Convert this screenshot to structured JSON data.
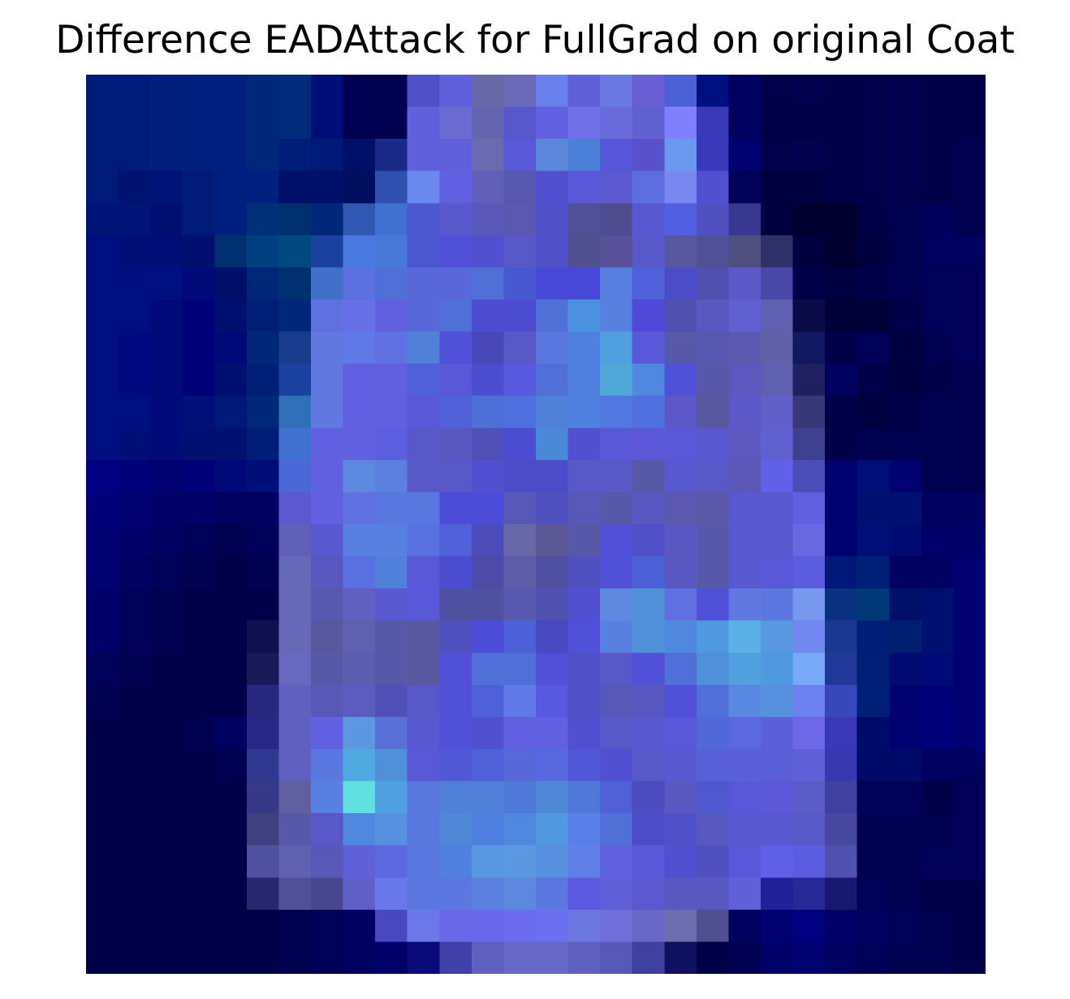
{
  "chart_data": {
    "type": "heatmap",
    "title": "Difference EADAttack for FullGrad on original Coat",
    "axes_visible": false,
    "grid": false,
    "rows": 28,
    "cols": 28,
    "cell_colors": [
      [
        "#001a7a",
        "#001a7a",
        "#001e7a",
        "#002080",
        "#002080",
        "#00287a",
        "#002a7a",
        "#000f78",
        "#000050",
        "#000050",
        "#5050c8",
        "#6060dc",
        "#6868a8",
        "#6a6ab8",
        "#6a80ec",
        "#6060d8",
        "#6a78e4",
        "#6a5ed4",
        "#4a60d4",
        "#000f80",
        "#000060",
        "#00004a",
        "#00004c",
        "#000048",
        "#00004a",
        "#00004c",
        "#000048",
        "#000048"
      ],
      [
        "#001a7a",
        "#001a7a",
        "#001e7a",
        "#002080",
        "#002080",
        "#00287a",
        "#002a7a",
        "#000f78",
        "#000050",
        "#000050",
        "#6060dc",
        "#6a6ad0",
        "#6464b0",
        "#5858cc",
        "#6060e0",
        "#7070e8",
        "#6a6adc",
        "#6060d0",
        "#8080ff",
        "#3838b8",
        "#000060",
        "#000048",
        "#000048",
        "#000048",
        "#00004a",
        "#00004c",
        "#000048",
        "#000048"
      ],
      [
        "#001a7a",
        "#001a7a",
        "#001e7a",
        "#002080",
        "#002080",
        "#00287a",
        "#001e78",
        "#001878",
        "#000f68",
        "#1a2888",
        "#6060dc",
        "#6060dc",
        "#6a6ab0",
        "#5858d8",
        "#5c88dc",
        "#4c80d8",
        "#5656d8",
        "#5a50cc",
        "#6a98ee",
        "#3838b8",
        "#000070",
        "#00004a",
        "#00004c",
        "#000048",
        "#00004a",
        "#00004c",
        "#000048",
        "#000050"
      ],
      [
        "#001a7a",
        "#001270",
        "#001478",
        "#001a78",
        "#002080",
        "#002080",
        "#001068",
        "#000f68",
        "#000f60",
        "#3050b0",
        "#6a88ee",
        "#6060e0",
        "#6060b8",
        "#5858b0",
        "#5050d0",
        "#5858d8",
        "#5c58d0",
        "#5c6ee0",
        "#7888f0",
        "#5050d0",
        "#000058",
        "#000040",
        "#000040",
        "#000048",
        "#00004a",
        "#00004c",
        "#000048",
        "#000050"
      ],
      [
        "#001478",
        "#001478",
        "#001070",
        "#001a78",
        "#002080",
        "#003078",
        "#003070",
        "#00287a",
        "#3058b0",
        "#4070d0",
        "#4c58d0",
        "#5858cc",
        "#5a58b8",
        "#5a58b0",
        "#5050c8",
        "#505098",
        "#504c90",
        "#5858d0",
        "#5060e0",
        "#5050c0",
        "#383890",
        "#000040",
        "#000030",
        "#000030",
        "#000048",
        "#000050",
        "#00005c",
        "#000050"
      ],
      [
        "#000f80",
        "#000f78",
        "#000f78",
        "#000f70",
        "#003070",
        "#004080",
        "#004880",
        "#1a40a0",
        "#4878e0",
        "#4878d8",
        "#4c58d0",
        "#5050d8",
        "#5050d0",
        "#5858c8",
        "#5050c8",
        "#505090",
        "#585098",
        "#5858c8",
        "#5858a0",
        "#505098",
        "#505080",
        "#303068",
        "#000040",
        "#000030",
        "#000040",
        "#000050",
        "#000060",
        "#000060"
      ],
      [
        "#000f80",
        "#000f80",
        "#000f80",
        "#000a78",
        "#001068",
        "#002878",
        "#003070",
        "#4070c8",
        "#5c70e0",
        "#5070d8",
        "#5868d8",
        "#5868d8",
        "#5070d8",
        "#4858d0",
        "#4848d8",
        "#4848d8",
        "#5880e0",
        "#5060d8",
        "#4c4cc8",
        "#5050b0",
        "#5c58c8",
        "#4848a8",
        "#000048",
        "#000040",
        "#000048",
        "#000050",
        "#000058",
        "#000058"
      ],
      [
        "#000f80",
        "#000f80",
        "#000a78",
        "#000078",
        "#001070",
        "#002078",
        "#00287a",
        "#6070e0",
        "#6870e8",
        "#6060e0",
        "#5868d8",
        "#5070d8",
        "#4c4cd0",
        "#4c4cd0",
        "#5070d8",
        "#4c90e0",
        "#5880e0",
        "#5048d8",
        "#5050b0",
        "#5858c0",
        "#6060d0",
        "#6060b0",
        "#0a0a48",
        "#000038",
        "#000038",
        "#000048",
        "#000058",
        "#000058"
      ],
      [
        "#000f80",
        "#000a80",
        "#000a78",
        "#000078",
        "#00087a",
        "#00287a",
        "#1a3c8c",
        "#6078e0",
        "#6078e8",
        "#6070e0",
        "#5080d8",
        "#5050d8",
        "#4848b8",
        "#5858c8",
        "#5878e0",
        "#5080e0",
        "#50a0e0",
        "#5858d8",
        "#5858a8",
        "#5858b0",
        "#5c5ab0",
        "#6060a8",
        "#101860",
        "#000048",
        "#000058",
        "#000040",
        "#000050",
        "#000058"
      ],
      [
        "#000f80",
        "#000a80",
        "#000a78",
        "#000078",
        "#001070",
        "#002078",
        "#1a40a0",
        "#6078e0",
        "#6060e0",
        "#6060e0",
        "#5060d8",
        "#5858d8",
        "#4c4cd0",
        "#5858e0",
        "#5070d8",
        "#5080e0",
        "#50a8d8",
        "#5088e0",
        "#5050d8",
        "#5858a8",
        "#5c58c0",
        "#6060b0",
        "#202060",
        "#000060",
        "#000048",
        "#000040",
        "#000048",
        "#000050"
      ],
      [
        "#000f80",
        "#000f80",
        "#000a78",
        "#001078",
        "#001878",
        "#002878",
        "#3070b8",
        "#6078e0",
        "#6060e0",
        "#6060e0",
        "#5858d8",
        "#5060d8",
        "#4c70d8",
        "#5070e0",
        "#5080d8",
        "#5080e0",
        "#5078e0",
        "#5070e0",
        "#5c58c8",
        "#5858a0",
        "#5c58c8",
        "#6060c8",
        "#383878",
        "#000048",
        "#000040",
        "#000048",
        "#000050",
        "#000050"
      ],
      [
        "#000f80",
        "#000f78",
        "#000a78",
        "#001070",
        "#001070",
        "#001e78",
        "#4070d0",
        "#6060e0",
        "#6060e0",
        "#5c60e0",
        "#5858c8",
        "#5858c0",
        "#5050b8",
        "#4c4cd0",
        "#4c88d8",
        "#5050d0",
        "#5858d8",
        "#5c58d8",
        "#5858d8",
        "#5858d0",
        "#5c58c0",
        "#6060d0",
        "#404090",
        "#000048",
        "#000050",
        "#000050",
        "#000050",
        "#000050"
      ],
      [
        "#000080",
        "#000078",
        "#000070",
        "#000078",
        "#00087a",
        "#000f78",
        "#4c68d8",
        "#6060e0",
        "#5c88e0",
        "#5c80e0",
        "#5858c8",
        "#5858c8",
        "#5050d0",
        "#4c4cc8",
        "#4c4cc8",
        "#5858c8",
        "#5858c8",
        "#5858a8",
        "#5858d0",
        "#5858c8",
        "#5c58b8",
        "#6060e8",
        "#4c4cb8",
        "#000070",
        "#001078",
        "#000070",
        "#000050",
        "#000050"
      ],
      [
        "#000078",
        "#000070",
        "#000068",
        "#000068",
        "#000060",
        "#000060",
        "#5c58d0",
        "#6060e0",
        "#6070e0",
        "#5878e0",
        "#5878e0",
        "#4c4cd8",
        "#4c4cd8",
        "#5858b8",
        "#5050c0",
        "#5858b8",
        "#5858a8",
        "#5858c0",
        "#5c58b0",
        "#5c58a8",
        "#5858d0",
        "#5858d0",
        "#6060e0",
        "#000070",
        "#001070",
        "#001070",
        "#000060",
        "#000060"
      ],
      [
        "#000070",
        "#000068",
        "#000060",
        "#000058",
        "#000050",
        "#000058",
        "#6060b8",
        "#5858d0",
        "#5880e0",
        "#5880e0",
        "#5870e0",
        "#5060d8",
        "#4c4cb8",
        "#6868a8",
        "#5c5898",
        "#5858a8",
        "#5050d8",
        "#5050c8",
        "#5858c0",
        "#5858a8",
        "#5858d0",
        "#5858d0",
        "#6868e0",
        "#000070",
        "#001078",
        "#000a70",
        "#000068",
        "#000068"
      ],
      [
        "#000070",
        "#000060",
        "#000058",
        "#000050",
        "#000048",
        "#000050",
        "#6868b8",
        "#5858c0",
        "#5870e0",
        "#5080d8",
        "#5858d8",
        "#4c4cd0",
        "#4c4ca8",
        "#5c5ca8",
        "#5050a0",
        "#5050c0",
        "#5050d8",
        "#4c60d8",
        "#5858c0",
        "#5858a8",
        "#5858d0",
        "#5858d8",
        "#5c5ce0",
        "#001878",
        "#002078",
        "#000060",
        "#000060",
        "#000070"
      ],
      [
        "#000068",
        "#000058",
        "#000050",
        "#000048",
        "#000048",
        "#000048",
        "#6868b8",
        "#5858b0",
        "#6060c0",
        "#5858d0",
        "#5858d8",
        "#5050a0",
        "#5050a0",
        "#5858b0",
        "#5050b0",
        "#5050d0",
        "#6088e0",
        "#5090d8",
        "#6070e0",
        "#5050d8",
        "#6078e0",
        "#5c78e0",
        "#7898f0",
        "#0a3080",
        "#003878",
        "#001068",
        "#001070",
        "#000070"
      ],
      [
        "#000068",
        "#000058",
        "#000050",
        "#000048",
        "#000048",
        "#101050",
        "#6868b8",
        "#5858a0",
        "#6060b0",
        "#5858a8",
        "#5858a0",
        "#5050c0",
        "#4c4cd8",
        "#4c60d8",
        "#4848c0",
        "#5050d8",
        "#5880e0",
        "#5090d8",
        "#5088e0",
        "#5098e0",
        "#5cb0e8",
        "#5898e0",
        "#7088f0",
        "#1a3890",
        "#001e78",
        "#001e70",
        "#001070",
        "#000070"
      ],
      [
        "#000058",
        "#000050",
        "#000048",
        "#000048",
        "#000048",
        "#1a1a58",
        "#6868c0",
        "#5858a8",
        "#5c5cb0",
        "#5858a8",
        "#5858a0",
        "#5050d8",
        "#5070d8",
        "#5070d8",
        "#5050d8",
        "#5050c8",
        "#5858c8",
        "#5050d8",
        "#5070d8",
        "#5090d8",
        "#50a0e0",
        "#5098e0",
        "#78a8f8",
        "#203898",
        "#002078",
        "#000a70",
        "#000a78",
        "#000070"
      ],
      [
        "#000050",
        "#000048",
        "#000048",
        "#000048",
        "#000048",
        "#282880",
        "#6060c0",
        "#5858b8",
        "#5c5cc0",
        "#5050b8",
        "#5858c8",
        "#5050d8",
        "#5060d8",
        "#6078e8",
        "#5858e0",
        "#5050c8",
        "#5858b8",
        "#5858c0",
        "#5050d8",
        "#5070d8",
        "#5888e0",
        "#5890e0",
        "#6c80f0",
        "#3848b8",
        "#002078",
        "#000070",
        "#000078",
        "#000070"
      ],
      [
        "#000048",
        "#000048",
        "#000048",
        "#000050",
        "#000060",
        "#282888",
        "#6060c0",
        "#6060e0",
        "#5c98e0",
        "#5870d8",
        "#5858d0",
        "#5050d8",
        "#5050d0",
        "#6060e0",
        "#6060e0",
        "#5050d0",
        "#5858c8",
        "#5858d0",
        "#5858d8",
        "#5068d8",
        "#5c68e0",
        "#5c60d8",
        "#6c68e8",
        "#3838b8",
        "#000a68",
        "#000070",
        "#000078",
        "#000070"
      ],
      [
        "#000048",
        "#000048",
        "#000048",
        "#000048",
        "#000050",
        "#303890",
        "#6060c0",
        "#5878e0",
        "#50a8e0",
        "#5090d8",
        "#5858d8",
        "#5058d8",
        "#5060d8",
        "#5868d8",
        "#5868e0",
        "#5058d8",
        "#5050d0",
        "#5858c8",
        "#5858d0",
        "#5860d8",
        "#5c60d8",
        "#5c60d8",
        "#6060d8",
        "#3838b0",
        "#000a68",
        "#000a68",
        "#000060",
        "#000060"
      ],
      [
        "#000048",
        "#000048",
        "#000048",
        "#000048",
        "#000048",
        "#383888",
        "#6060a0",
        "#5880e0",
        "#60e0e0",
        "#50a0e0",
        "#5878e0",
        "#5080d8",
        "#5080d8",
        "#5078d8",
        "#5088d8",
        "#5078d8",
        "#5060d8",
        "#4c4cc0",
        "#5858c0",
        "#5058d0",
        "#5858d8",
        "#5c58d8",
        "#5c5cc8",
        "#4040a0",
        "#000058",
        "#000058",
        "#000048",
        "#000058"
      ],
      [
        "#000048",
        "#000048",
        "#000048",
        "#000048",
        "#000048",
        "#404080",
        "#5858a8",
        "#5858c8",
        "#5088e0",
        "#5890e0",
        "#5878e0",
        "#5088d8",
        "#5080e0",
        "#5088e0",
        "#5098e0",
        "#5880e8",
        "#5070d8",
        "#4c4cc8",
        "#5050c8",
        "#5858c0",
        "#5858d0",
        "#5858d0",
        "#5858c8",
        "#4848a0",
        "#000050",
        "#000050",
        "#000050",
        "#000058"
      ],
      [
        "#000048",
        "#000048",
        "#000048",
        "#000048",
        "#000048",
        "#5050a0",
        "#6060b0",
        "#5858b8",
        "#6060d8",
        "#5c68e0",
        "#5878e0",
        "#5080e0",
        "#5898e0",
        "#5c98e0",
        "#5890e0",
        "#6080e8",
        "#6060e0",
        "#5858d8",
        "#5050d0",
        "#5050c0",
        "#5858d8",
        "#6060e8",
        "#5c5ce0",
        "#5050b0",
        "#000050",
        "#000050",
        "#000058",
        "#000058"
      ],
      [
        "#000048",
        "#000048",
        "#000048",
        "#000048",
        "#000048",
        "#282870",
        "#505098",
        "#484890",
        "#6060c8",
        "#6878e8",
        "#5c78e0",
        "#5c78e0",
        "#5c80e0",
        "#5c88e0",
        "#5c78e0",
        "#5c58e0",
        "#6060d8",
        "#5c58d0",
        "#5858c0",
        "#5858c0",
        "#6060d8",
        "#202098",
        "#282898",
        "#181870",
        "#000058",
        "#000050",
        "#000048",
        "#000048"
      ],
      [
        "#000048",
        "#000048",
        "#000048",
        "#000048",
        "#000048",
        "#000048",
        "#000050",
        "#000058",
        "#000060",
        "#4848c0",
        "#6c78e8",
        "#6868e8",
        "#6868ec",
        "#6c6cf0",
        "#6c70f0",
        "#6c78e0",
        "#7070d8",
        "#6868c8",
        "#6c6cb0",
        "#505090",
        "#000060",
        "#000070",
        "#000080",
        "#000068",
        "#000060",
        "#000058",
        "#000050",
        "#000048"
      ],
      [
        "#000048",
        "#000048",
        "#000048",
        "#000048",
        "#000048",
        "#000048",
        "#000050",
        "#000058",
        "#000060",
        "#000068",
        "#0a0a78",
        "#4040a8",
        "#6060c0",
        "#6868c8",
        "#6868c8",
        "#6060c0",
        "#5858b8",
        "#4040a0",
        "#101060",
        "#000048",
        "#000050",
        "#000068",
        "#000070",
        "#000060",
        "#000058",
        "#000050",
        "#000050",
        "#000048"
      ]
    ]
  }
}
